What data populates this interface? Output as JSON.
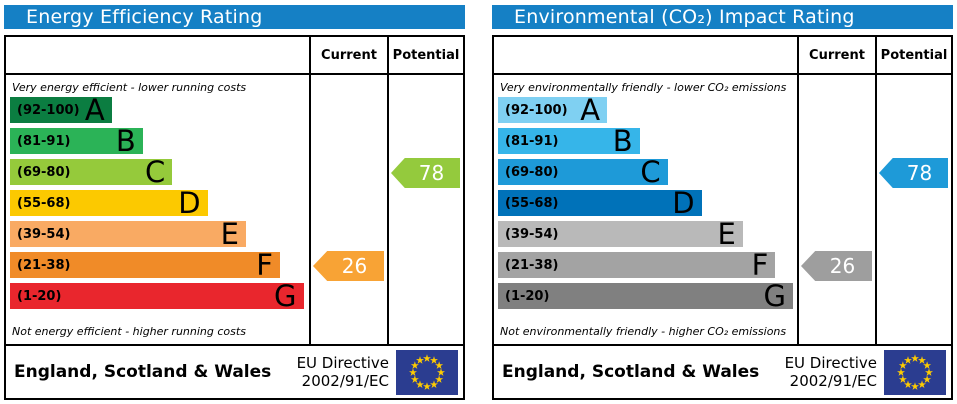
{
  "colors": {
    "header_bg": "#1580c5",
    "flag_bg": "#2b3d90",
    "flag_star": "#ffcc00"
  },
  "panels": [
    {
      "title": "Energy Efficiency Rating",
      "columns": {
        "current": "Current",
        "potential": "Potential"
      },
      "top_note": "Very energy efficient - lower running costs",
      "bottom_note": "Not energy efficient - higher running costs",
      "bands": [
        {
          "label": "(92-100)",
          "letter": "A",
          "color": "#0b7d41",
          "width": "34.5%"
        },
        {
          "label": "(81-91)",
          "letter": "B",
          "color": "#2bb357",
          "width": "45%"
        },
        {
          "label": "(69-80)",
          "letter": "C",
          "color": "#95ca3b",
          "width": "55%"
        },
        {
          "label": "(55-68)",
          "letter": "D",
          "color": "#fcc900",
          "width": "67%"
        },
        {
          "label": "(39-54)",
          "letter": "E",
          "color": "#f9aa63",
          "width": "80%"
        },
        {
          "label": "(21-38)",
          "letter": "F",
          "color": "#f08b28",
          "width": "91.5%"
        },
        {
          "label": "(1-20)",
          "letter": "G",
          "color": "#e9262d",
          "width": "99.5%"
        }
      ],
      "current": {
        "value": "26",
        "color": "#f8a335",
        "row": 5
      },
      "potential": {
        "value": "78",
        "color": "#94ca3d",
        "row": 2
      },
      "footer": {
        "region": "England, Scotland & Wales",
        "directive_line1": "EU Directive",
        "directive_line2": "2002/91/EC"
      }
    },
    {
      "title": "Environmental (CO₂) Impact Rating",
      "columns": {
        "current": "Current",
        "potential": "Potential"
      },
      "top_note": "Very environmentally friendly - lower CO₂ emissions",
      "bottom_note": "Not environmentally friendly - higher CO₂ emissions",
      "bands": [
        {
          "label": "(92-100)",
          "letter": "A",
          "color": "#7fd0f2",
          "width": "37%"
        },
        {
          "label": "(81-91)",
          "letter": "B",
          "color": "#36b5e9",
          "width": "48%"
        },
        {
          "label": "(69-80)",
          "letter": "C",
          "color": "#1e9ad8",
          "width": "57.5%"
        },
        {
          "label": "(55-68)",
          "letter": "D",
          "color": "#0072b9",
          "width": "69%"
        },
        {
          "label": "(39-54)",
          "letter": "E",
          "color": "#b9b9b9",
          "width": "83%"
        },
        {
          "label": "(21-38)",
          "letter": "F",
          "color": "#a3a3a3",
          "width": "94%"
        },
        {
          "label": "(1-20)",
          "letter": "G",
          "color": "#808080",
          "width": "100%"
        }
      ],
      "current": {
        "value": "26",
        "color": "#9e9e9e",
        "row": 5
      },
      "potential": {
        "value": "78",
        "color": "#1e9ad8",
        "row": 2
      },
      "footer": {
        "region": "England, Scotland & Wales",
        "directive_line1": "EU Directive",
        "directive_line2": "2002/91/EC"
      }
    }
  ],
  "chart_data": [
    {
      "type": "bar",
      "title": "Energy Efficiency Rating",
      "categories": [
        "A (92-100)",
        "B (81-91)",
        "C (69-80)",
        "D (55-68)",
        "E (39-54)",
        "F (21-38)",
        "G (1-20)"
      ],
      "series": [
        {
          "name": "Current",
          "value": 26,
          "band": "F"
        },
        {
          "name": "Potential",
          "value": 78,
          "band": "C"
        }
      ],
      "annotations": [
        "Very energy efficient - lower running costs",
        "Not energy efficient - higher running costs"
      ],
      "footer": "England, Scotland & Wales — EU Directive 2002/91/EC"
    },
    {
      "type": "bar",
      "title": "Environmental (CO₂) Impact Rating",
      "categories": [
        "A (92-100)",
        "B (81-91)",
        "C (69-80)",
        "D (55-68)",
        "E (39-54)",
        "F (21-38)",
        "G (1-20)"
      ],
      "series": [
        {
          "name": "Current",
          "value": 26,
          "band": "F"
        },
        {
          "name": "Potential",
          "value": 78,
          "band": "C"
        }
      ],
      "annotations": [
        "Very environmentally friendly - lower CO₂ emissions",
        "Not environmentally friendly - higher CO₂ emissions"
      ],
      "footer": "England, Scotland & Wales — EU Directive 2002/91/EC"
    }
  ]
}
